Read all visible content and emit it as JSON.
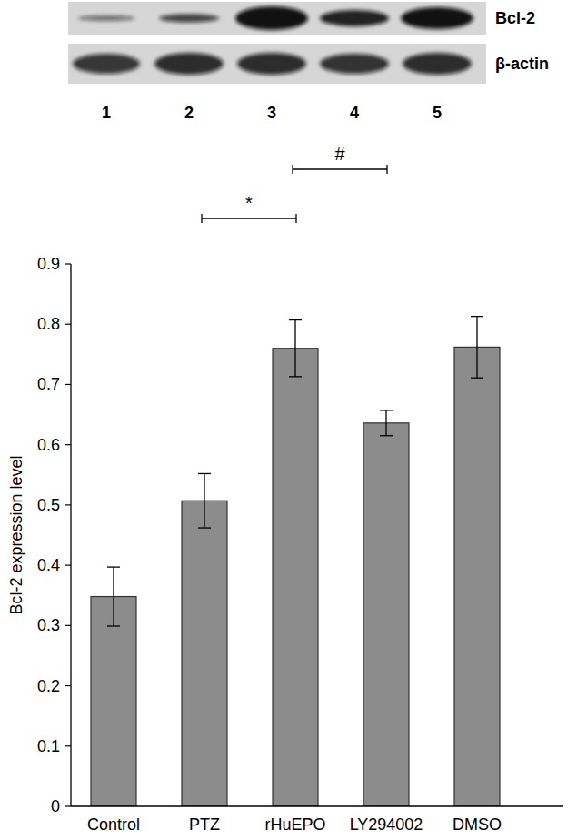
{
  "chart_data": {
    "type": "bar",
    "categories": [
      "Control",
      "PTZ",
      "rHuEPO",
      "LY294002",
      "DMSO"
    ],
    "values": [
      0.348,
      0.507,
      0.76,
      0.636,
      0.762
    ],
    "errors": [
      0.049,
      0.045,
      0.047,
      0.021,
      0.051
    ],
    "color": "#8c8c8c",
    "y_label": "Bcl-2 expression level",
    "ylim": [
      0,
      0.9
    ],
    "yticks": [
      0,
      0.1,
      0.2,
      0.3,
      0.4,
      0.5,
      0.6,
      0.7,
      0.8,
      0.9
    ],
    "grid": false,
    "annotations": [
      {
        "text": "*",
        "from": "PTZ",
        "to": "rHuEPO"
      },
      {
        "text": "#",
        "from": "rHuEPO",
        "to": "LY294002"
      }
    ]
  },
  "blot": {
    "rows": [
      {
        "label": "Bcl-2"
      },
      {
        "label": "β-actin"
      }
    ],
    "lanes": [
      "1",
      "2",
      "3",
      "4",
      "5"
    ]
  }
}
